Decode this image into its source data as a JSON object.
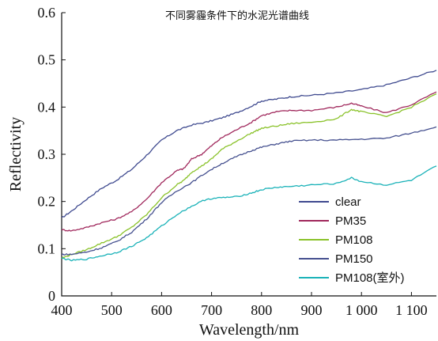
{
  "chart_data": {
    "type": "line",
    "title": "不同雾霾条件下的水泥光谱曲线",
    "xlabel": "Wavelength/nm",
    "ylabel": "Reflectivity",
    "xlim": [
      400,
      1150
    ],
    "ylim": [
      0,
      0.6
    ],
    "x_ticks": [
      400,
      500,
      600,
      700,
      800,
      900,
      1000,
      1100
    ],
    "x_tick_labels": [
      "400",
      "500",
      "600",
      "700",
      "800",
      "900",
      "1 000",
      "1 100"
    ],
    "y_ticks": [
      0,
      0.1,
      0.2,
      0.3,
      0.4,
      0.5,
      0.6
    ],
    "y_tick_labels": [
      "0",
      "0.1",
      "0.2",
      "0.3",
      "0.4",
      "0.5",
      "0.6"
    ],
    "grid": false,
    "legend_position": "bottom-right",
    "series": [
      {
        "name": "clear",
        "color": "#3f4a8f",
        "x": [
          400,
          420,
          450,
          480,
          510,
          540,
          570,
          600,
          630,
          660,
          690,
          720,
          750,
          780,
          800,
          830,
          860,
          900,
          950,
          1000,
          1050,
          1100,
          1150
        ],
        "y": [
          0.165,
          0.18,
          0.205,
          0.228,
          0.245,
          0.268,
          0.298,
          0.33,
          0.35,
          0.362,
          0.368,
          0.377,
          0.388,
          0.402,
          0.413,
          0.417,
          0.422,
          0.425,
          0.43,
          0.437,
          0.447,
          0.462,
          0.478
        ]
      },
      {
        "name": "PM35",
        "color": "#a0285c",
        "x": [
          400,
          420,
          450,
          480,
          510,
          540,
          570,
          600,
          630,
          645,
          660,
          680,
          700,
          720,
          750,
          780,
          800,
          830,
          860,
          900,
          950,
          980,
          1000,
          1050,
          1100,
          1150
        ],
        "y": [
          0.14,
          0.138,
          0.145,
          0.155,
          0.163,
          0.178,
          0.205,
          0.24,
          0.265,
          0.27,
          0.29,
          0.3,
          0.318,
          0.335,
          0.352,
          0.368,
          0.382,
          0.39,
          0.393,
          0.393,
          0.4,
          0.408,
          0.402,
          0.388,
          0.405,
          0.432
        ]
      },
      {
        "name": "PM108",
        "color": "#8ac22a",
        "x": [
          400,
          420,
          450,
          480,
          510,
          540,
          570,
          600,
          630,
          645,
          660,
          680,
          700,
          720,
          750,
          780,
          800,
          830,
          860,
          900,
          950,
          980,
          1000,
          1050,
          1100,
          1150
        ],
        "y": [
          0.08,
          0.088,
          0.098,
          0.112,
          0.125,
          0.145,
          0.172,
          0.208,
          0.235,
          0.245,
          0.262,
          0.275,
          0.29,
          0.31,
          0.328,
          0.345,
          0.355,
          0.36,
          0.365,
          0.368,
          0.375,
          0.395,
          0.39,
          0.38,
          0.4,
          0.428
        ]
      },
      {
        "name": "PM150",
        "color": "#45508f",
        "x": [
          400,
          420,
          450,
          480,
          510,
          540,
          570,
          600,
          630,
          660,
          690,
          720,
          750,
          780,
          800,
          830,
          860,
          900,
          950,
          1000,
          1050,
          1100,
          1150
        ],
        "y": [
          0.088,
          0.088,
          0.093,
          0.102,
          0.115,
          0.135,
          0.163,
          0.198,
          0.222,
          0.24,
          0.262,
          0.28,
          0.295,
          0.308,
          0.315,
          0.322,
          0.328,
          0.33,
          0.33,
          0.332,
          0.334,
          0.345,
          0.358
        ]
      },
      {
        "name": "PM108(室外)",
        "color": "#1ab2b8",
        "x": [
          400,
          420,
          450,
          480,
          510,
          540,
          570,
          600,
          630,
          660,
          690,
          720,
          750,
          780,
          800,
          830,
          860,
          900,
          950,
          980,
          1000,
          1050,
          1100,
          1150
        ],
        "y": [
          0.08,
          0.075,
          0.078,
          0.085,
          0.092,
          0.105,
          0.123,
          0.148,
          0.172,
          0.19,
          0.205,
          0.208,
          0.21,
          0.218,
          0.225,
          0.23,
          0.232,
          0.235,
          0.238,
          0.25,
          0.242,
          0.235,
          0.245,
          0.275
        ]
      }
    ]
  }
}
